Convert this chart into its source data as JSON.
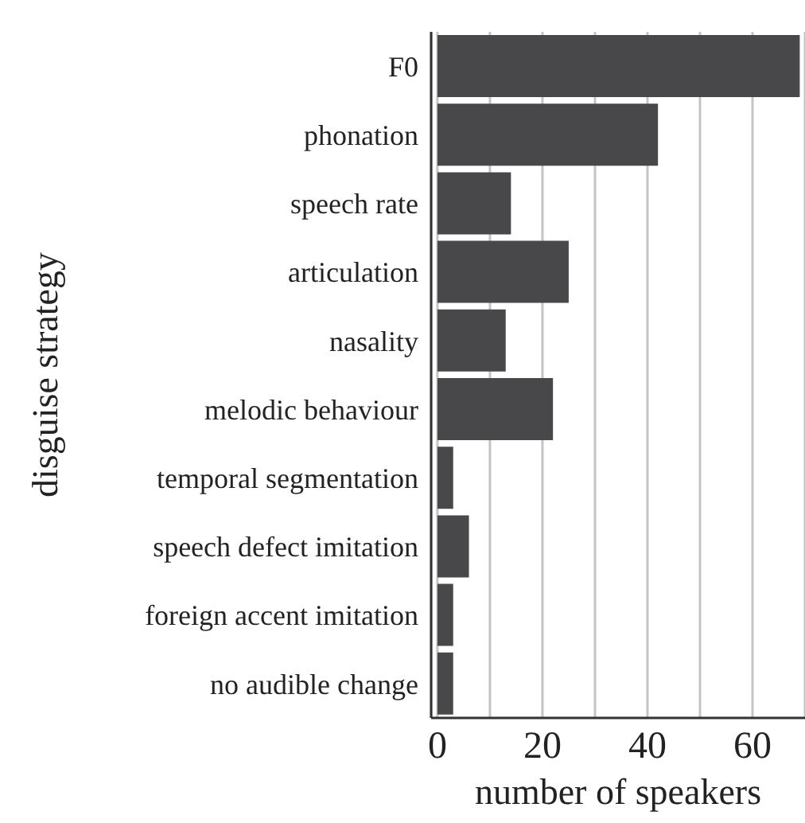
{
  "chart_data": {
    "type": "bar",
    "orientation": "horizontal",
    "xlabel": "number of speakers",
    "ylabel": "disguise strategy",
    "categories": [
      "F0",
      "phonation",
      "speech rate",
      "articulation",
      "nasality",
      "melodic behaviour",
      "temporal segmentation",
      "speech defect imitation",
      "foreign accent  imitation",
      "no audible change"
    ],
    "values": [
      69,
      42,
      14,
      25,
      13,
      22,
      3,
      6,
      3,
      3
    ],
    "color": "#48484a",
    "xlim": [
      -1.2,
      70
    ],
    "xticks": [
      0,
      {
        "value": 10,
        "label": null
      },
      20,
      {
        "value": 30,
        "label": null
      },
      40,
      {
        "value": 50,
        "label": null
      },
      60,
      {
        "value": 70,
        "label": null
      }
    ],
    "grid": "x"
  }
}
